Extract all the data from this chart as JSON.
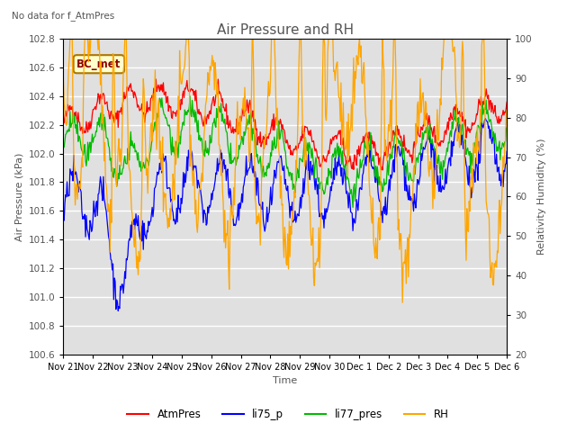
{
  "title": "Air Pressure and RH",
  "subtitle": "No data for f_AtmPres",
  "annotation": "BC_met",
  "xlabel": "Time",
  "ylabel_left": "Air Pressure (kPa)",
  "ylabel_right": "Relativity Humidity (%)",
  "ylim_left": [
    100.6,
    102.8
  ],
  "ylim_right": [
    20,
    100
  ],
  "yticks_left": [
    100.6,
    100.8,
    101.0,
    101.2,
    101.4,
    101.6,
    101.8,
    102.0,
    102.2,
    102.4,
    102.6,
    102.8
  ],
  "yticks_right": [
    20,
    30,
    40,
    50,
    60,
    70,
    80,
    90,
    100
  ],
  "xtick_labels": [
    "Nov 21",
    "Nov 22",
    "Nov 23",
    "Nov 24",
    "Nov 25",
    "Nov 26",
    "Nov 27",
    "Nov 28",
    "Nov 29",
    "Nov 30",
    "Dec 1",
    "Dec 2",
    "Dec 3",
    "Dec 4",
    "Dec 5",
    "Dec 6"
  ],
  "colors": {
    "AtmPres": "#ff0000",
    "li75_p": "#0000ff",
    "li77_pres": "#00bb00",
    "RH": "#ffa500"
  },
  "legend_entries": [
    "AtmPres",
    "li75_p",
    "li77_pres",
    "RH"
  ],
  "background_color": "#ffffff",
  "plot_bg_color": "#e0e0e0",
  "grid_color": "#ffffff",
  "title_color": "#555555",
  "label_color": "#555555",
  "annotation_bg": "#ffffcc",
  "annotation_border": "#aa7700"
}
